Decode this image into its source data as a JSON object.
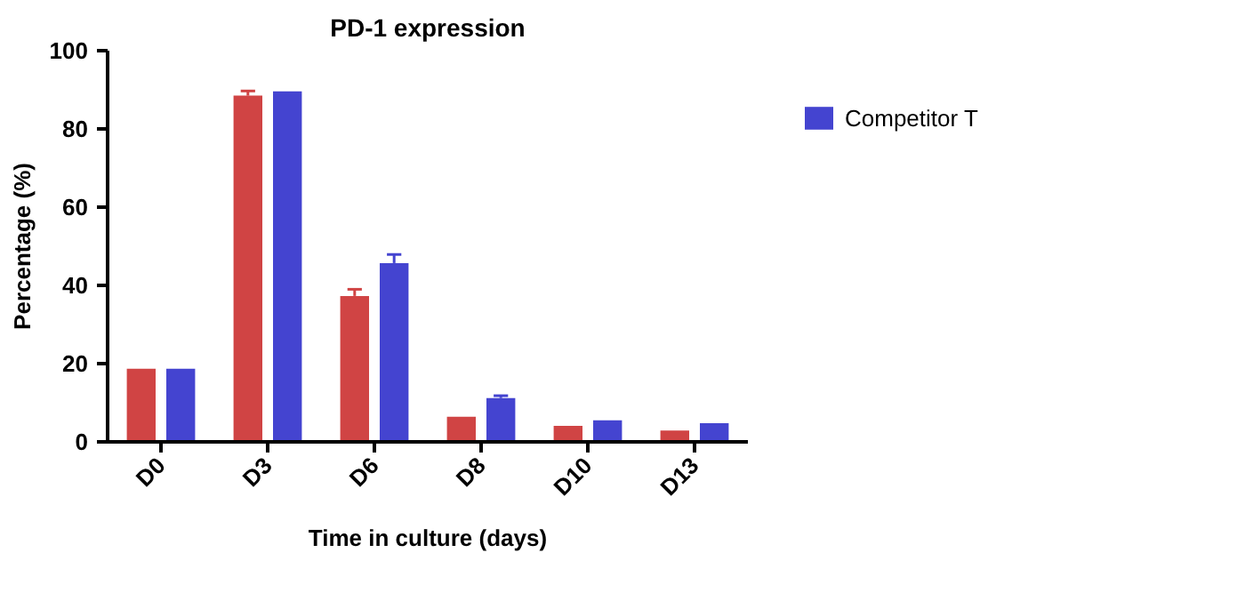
{
  "chart_data": {
    "type": "bar",
    "title": "PD-1 expression",
    "xlabel": "Time in culture (days)",
    "ylabel": "Percentage (%)",
    "categories": [
      "D0",
      "D3",
      "D6",
      "D8",
      "D10",
      "D13"
    ],
    "series": [
      {
        "color": "#d04444",
        "values": [
          18.7,
          88.5,
          37.3,
          6.4,
          4.1,
          2.9
        ],
        "errors": [
          null,
          1.2,
          1.7,
          null,
          null,
          null
        ]
      },
      {
        "name": "Competitor T",
        "color": "#4444d0",
        "values": [
          18.7,
          89.6,
          45.7,
          11.2,
          5.5,
          4.8
        ],
        "errors": [
          null,
          null,
          2.2,
          0.6,
          null,
          null
        ]
      }
    ],
    "ylim": [
      0,
      100
    ],
    "yticks": [
      0,
      20,
      40,
      60,
      80,
      100
    ],
    "legend": "right",
    "grid": false
  }
}
